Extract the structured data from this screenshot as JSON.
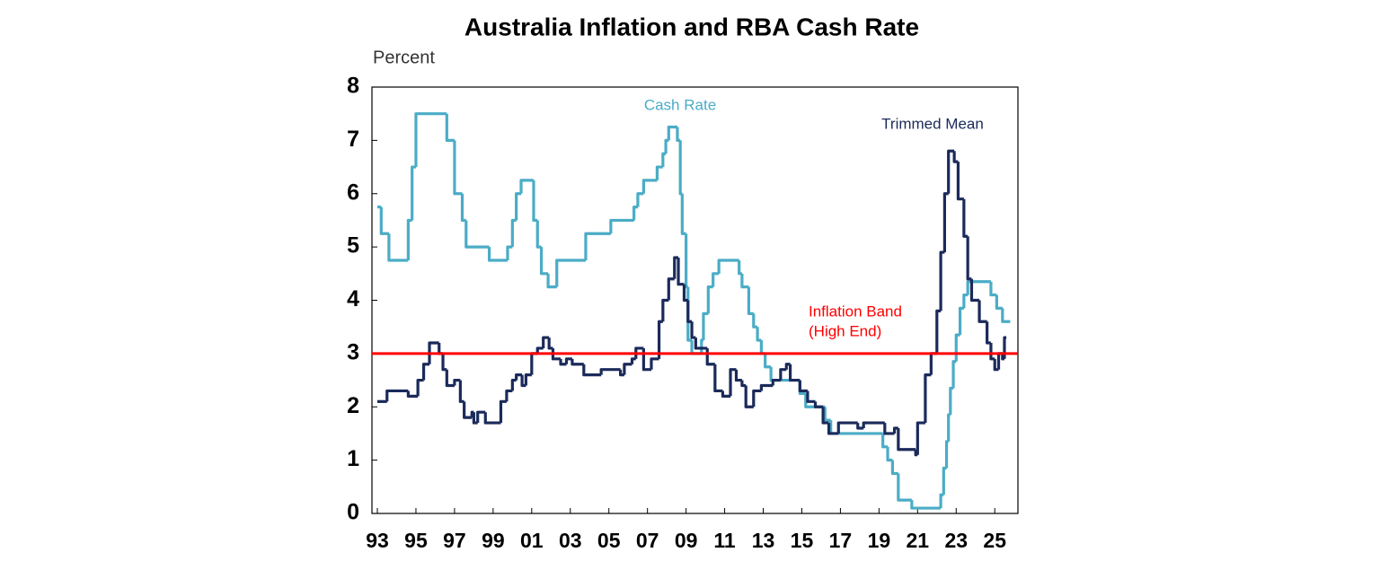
{
  "chart_data": {
    "type": "step",
    "title": "Australia Inflation and RBA Cash Rate",
    "y_label": "Percent",
    "xlim": [
      1992.72,
      2026.2
    ],
    "ylim": [
      0,
      8
    ],
    "xticks": [
      {
        "value": 1993,
        "label": "93"
      },
      {
        "value": 1995,
        "label": "95"
      },
      {
        "value": 1997,
        "label": "97"
      },
      {
        "value": 1999,
        "label": "99"
      },
      {
        "value": 2001,
        "label": "01"
      },
      {
        "value": 2003,
        "label": "03"
      },
      {
        "value": 2005,
        "label": "05"
      },
      {
        "value": 2007,
        "label": "07"
      },
      {
        "value": 2009,
        "label": "09"
      },
      {
        "value": 2011,
        "label": "11"
      },
      {
        "value": 2013,
        "label": "13"
      },
      {
        "value": 2015,
        "label": "15"
      },
      {
        "value": 2017,
        "label": "17"
      },
      {
        "value": 2019,
        "label": "19"
      },
      {
        "value": 2021,
        "label": "21"
      },
      {
        "value": 2023,
        "label": "23"
      },
      {
        "value": 2025,
        "label": "25"
      }
    ],
    "yticks": [
      0,
      1,
      2,
      3,
      4,
      5,
      6,
      7,
      8
    ],
    "series": [
      {
        "name": "Cash Rate",
        "color": "#4bacc6",
        "x": [
          1993.0,
          1993.2,
          1993.6,
          1994.6,
          1994.8,
          1995.0,
          1996.6,
          1997.0,
          1997.4,
          1997.6,
          1998.8,
          1999.75,
          2000.0,
          2000.2,
          2000.45,
          2001.1,
          2001.3,
          2001.5,
          2001.85,
          2002.3,
          2003.8,
          2005.1,
          2006.3,
          2006.5,
          2006.8,
          2007.5,
          2007.8,
          2007.95,
          2008.1,
          2008.55,
          2008.7,
          2008.8,
          2009.0,
          2009.1,
          2009.3,
          2009.8,
          2009.9,
          2010.15,
          2010.4,
          2010.7,
          2011.75,
          2011.9,
          2012.25,
          2012.5,
          2012.7,
          2012.9,
          2013.1,
          2013.4,
          2014.9,
          2015.2,
          2016.2,
          2016.5,
          2019.2,
          2019.45,
          2019.7,
          2020.0,
          2020.7,
          2022.2,
          2022.35,
          2022.5,
          2022.6,
          2022.7,
          2022.85,
          2023.0,
          2023.2,
          2023.4,
          2023.6,
          2024.8,
          2025.1,
          2025.4,
          2025.8
        ],
        "values": [
          5.75,
          5.25,
          4.75,
          5.5,
          6.5,
          7.5,
          7.0,
          6.0,
          5.5,
          5.0,
          4.75,
          5.0,
          5.5,
          6.0,
          6.25,
          5.5,
          5.0,
          4.5,
          4.25,
          4.75,
          5.25,
          5.5,
          5.75,
          6.0,
          6.25,
          6.5,
          6.75,
          7.0,
          7.25,
          7.0,
          6.0,
          5.25,
          4.25,
          3.25,
          3.0,
          3.25,
          3.75,
          4.25,
          4.5,
          4.75,
          4.5,
          4.25,
          3.75,
          3.5,
          3.25,
          3.0,
          2.75,
          2.5,
          2.25,
          2.0,
          1.75,
          1.5,
          1.25,
          1.0,
          0.75,
          0.25,
          0.1,
          0.35,
          0.85,
          1.35,
          1.85,
          2.35,
          2.85,
          3.35,
          3.85,
          4.1,
          4.35,
          4.1,
          3.85,
          3.6,
          3.6
        ]
      },
      {
        "name": "Trimmed Mean",
        "color": "#1b2a5a",
        "x": [
          1993.0,
          1993.5,
          1994.6,
          1995.1,
          1995.4,
          1995.7,
          1996.2,
          1996.4,
          1996.6,
          1997.0,
          1997.3,
          1997.5,
          1997.9,
          1998.0,
          1998.2,
          1998.6,
          1999.4,
          1999.7,
          2000.0,
          2000.2,
          2000.5,
          2000.7,
          2001.0,
          2001.3,
          2001.6,
          2001.9,
          2002.1,
          2002.5,
          2002.8,
          2003.1,
          2003.7,
          2004.6,
          2005.6,
          2005.8,
          2006.2,
          2006.4,
          2006.8,
          2007.2,
          2007.6,
          2007.8,
          2008.1,
          2008.4,
          2008.6,
          2008.9,
          2009.1,
          2009.3,
          2009.5,
          2010.1,
          2010.5,
          2010.9,
          2011.3,
          2011.6,
          2011.9,
          2012.1,
          2012.5,
          2012.9,
          2013.5,
          2013.9,
          2014.2,
          2014.4,
          2014.9,
          2015.3,
          2015.7,
          2016.1,
          2016.4,
          2016.9,
          2017.9,
          2018.2,
          2019.3,
          2019.8,
          2020.0,
          2020.9,
          2021.0,
          2021.4,
          2021.7,
          2022.0,
          2022.2,
          2022.4,
          2022.6,
          2022.9,
          2023.1,
          2023.4,
          2023.6,
          2023.8,
          2024.2,
          2024.6,
          2024.8,
          2025.0,
          2025.2,
          2025.4,
          2025.5,
          2025.6
        ],
        "values": [
          2.1,
          2.3,
          2.2,
          2.5,
          2.8,
          3.2,
          3.0,
          2.7,
          2.4,
          2.5,
          2.1,
          1.8,
          1.9,
          1.7,
          1.9,
          1.7,
          2.1,
          2.3,
          2.5,
          2.6,
          2.4,
          2.6,
          3.0,
          3.1,
          3.3,
          3.1,
          2.9,
          2.8,
          2.9,
          2.8,
          2.6,
          2.7,
          2.6,
          2.8,
          2.9,
          3.1,
          2.7,
          2.9,
          3.6,
          4.0,
          4.4,
          4.8,
          4.3,
          4.0,
          3.6,
          3.3,
          3.1,
          2.8,
          2.3,
          2.2,
          2.7,
          2.5,
          2.4,
          2.0,
          2.3,
          2.4,
          2.5,
          2.7,
          2.8,
          2.5,
          2.3,
          2.1,
          2.0,
          1.7,
          1.5,
          1.7,
          1.6,
          1.7,
          1.5,
          1.6,
          1.2,
          1.1,
          1.7,
          2.6,
          3.0,
          3.8,
          4.9,
          6.0,
          6.8,
          6.6,
          5.9,
          5.2,
          4.4,
          4.0,
          3.6,
          3.2,
          2.9,
          2.7,
          3.0,
          2.9,
          3.3,
          3.3
        ]
      }
    ],
    "reference_lines": [
      {
        "value": 3,
        "label": [
          "Inflation Band",
          "(High End)"
        ],
        "color": "#ff0000"
      }
    ]
  }
}
